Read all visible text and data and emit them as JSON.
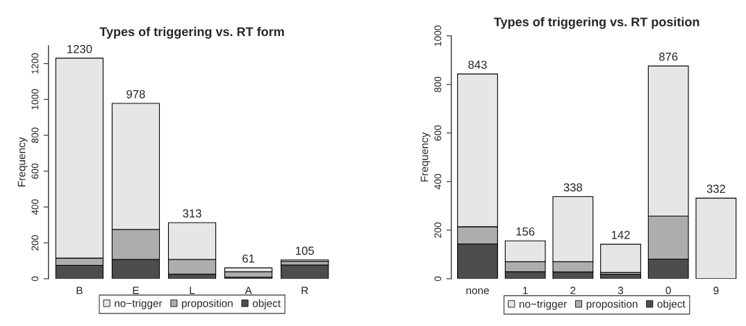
{
  "chart_data": [
    {
      "type": "bar",
      "title": "Types of triggering vs. RT form",
      "ylabel": "Frequency",
      "categories": [
        "B",
        "E",
        "L",
        "A",
        "R"
      ],
      "stacked": true,
      "legend": "bottom",
      "ylim": [
        0,
        1300
      ],
      "yticks": [
        0,
        200,
        400,
        600,
        800,
        1000,
        1200
      ],
      "series": [
        {
          "name": "object",
          "color": "#4d4d4d",
          "values": [
            75,
            108,
            25,
            9,
            77
          ]
        },
        {
          "name": "proposition",
          "color": "#adadad",
          "values": [
            40,
            167,
            83,
            30,
            20
          ]
        },
        {
          "name": "no−trigger",
          "color": "#e6e6e6",
          "values": [
            1115,
            703,
            205,
            22,
            8
          ]
        }
      ],
      "totals": [
        "1230",
        "978",
        "313",
        "61",
        "105"
      ]
    },
    {
      "type": "bar",
      "title": "Types of triggering vs. RT position",
      "ylabel": "Frequency",
      "categories": [
        "none",
        "1",
        "2",
        "3",
        "0",
        "9"
      ],
      "stacked": true,
      "legend": "bottom",
      "ylim": [
        0,
        1000
      ],
      "yticks": [
        0,
        200,
        400,
        600,
        800,
        1000
      ],
      "series": [
        {
          "name": "object",
          "color": "#4d4d4d",
          "values": [
            143,
            29,
            28,
            18,
            81,
            0
          ]
        },
        {
          "name": "proposition",
          "color": "#adadad",
          "values": [
            71,
            41,
            42,
            8,
            177,
            0
          ]
        },
        {
          "name": "no−trigger",
          "color": "#e6e6e6",
          "values": [
            629,
            86,
            268,
            116,
            618,
            332
          ]
        }
      ],
      "totals": [
        "843",
        "156",
        "338",
        "142",
        "876",
        "332"
      ]
    }
  ]
}
